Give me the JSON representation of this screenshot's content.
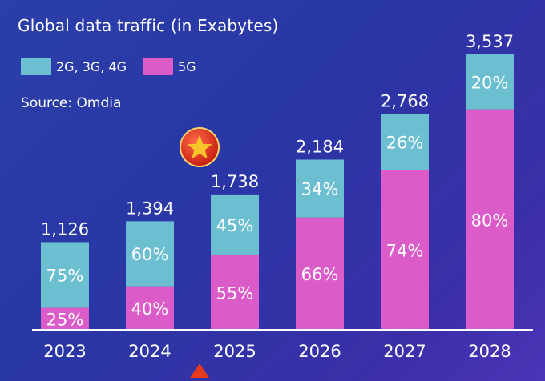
{
  "colors": {
    "background": "#2a3aa6",
    "series_2g_3g_4g": "#6bbfd1",
    "series_5g": "#db5cc8",
    "text": "#ffffff",
    "marker": "#e63a1e",
    "star": "#f7c52a"
  },
  "icons": {
    "badge": "star-badge-icon",
    "pointer": "triangle-pointer-icon"
  },
  "chart_data": {
    "type": "bar",
    "stacked": true,
    "title": "Global data traffic (in Exabytes)",
    "source": "Source: Omdia",
    "categories": [
      "2023",
      "2024",
      "2025",
      "2026",
      "2027",
      "2028"
    ],
    "totals": [
      1126,
      1394,
      1738,
      2184,
      2768,
      3537
    ],
    "total_labels": [
      "1,126",
      "1,394",
      "1,738",
      "2,184",
      "2,768",
      "3,537"
    ],
    "series": [
      {
        "name": "5G",
        "share_labels": [
          "25%",
          "40%",
          "55%",
          "66%",
          "74%",
          "80%"
        ],
        "shares": [
          25,
          40,
          55,
          66,
          74,
          80
        ]
      },
      {
        "name": "2G, 3G, 4G",
        "share_labels": [
          "75%",
          "60%",
          "45%",
          "34%",
          "26%",
          "20%"
        ],
        "shares": [
          75,
          60,
          45,
          34,
          26,
          20
        ]
      }
    ],
    "legend": [
      "2G, 3G, 4G",
      "5G"
    ],
    "legend_position": "top-left",
    "ylim": [
      0,
      3700
    ],
    "grid": false,
    "highlighted_category": "2025"
  }
}
